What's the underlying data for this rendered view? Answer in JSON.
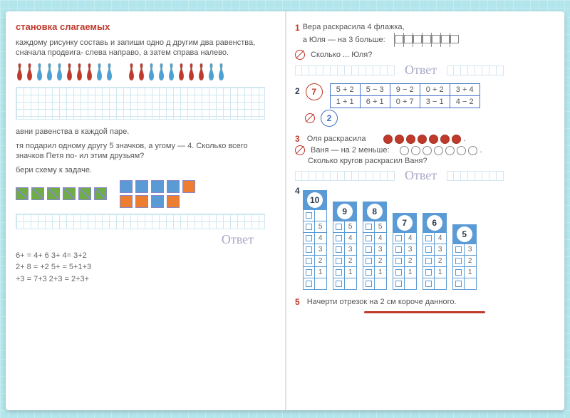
{
  "left": {
    "title": "становка слагаемых",
    "task1": "каждому рисунку составь и запиши одно д другим два равенства, сначала продвига- слева направо, а затем справа налево.",
    "pins_pattern": [
      "r",
      "r",
      "b",
      "b",
      "b",
      "r",
      "r",
      "r",
      "b",
      "b",
      "gap",
      "r",
      "r",
      "b",
      "b",
      "b",
      "r",
      "r",
      "r",
      "b",
      "b"
    ],
    "pin_colors": {
      "r": "#c0392b",
      "b": "#4aa3d4"
    },
    "task2": "авни равенства в каждой паре.",
    "task3a": "тя подарил одному другу 5 значков, а угому — 4. Сколько всего значков Петя по- ил этим друзьям?",
    "task3b": "бери схему к задаче.",
    "schema_boxes": {
      "green_diag_count": 6,
      "right_top": [
        "b",
        "b",
        "b",
        "b",
        "o"
      ],
      "right_bottom": [
        "o",
        "o",
        "b",
        "o"
      ]
    },
    "otvet": "Ответ",
    "equations": [
      "6+   = 4+ 6    3+ 4= 3+2",
      "2+ 8 =   +2    5+   = 5+1+3",
      "  +3 = 7+3     2+3 = 2+3+"
    ]
  },
  "right": {
    "t1": {
      "num": "1",
      "line1": "Вера раскрасила 4 флажка,",
      "line2": "а Юля — на 3 больше:",
      "line3": "Сколько ... Юля?",
      "flag_count": 7
    },
    "t2": {
      "num": "2",
      "circle7": "7",
      "circle2": "2",
      "row1": [
        "5 + 2",
        "5 − 3",
        "9 − 2",
        "0 + 2",
        "3 + 4"
      ],
      "row2": [
        "1 + 1",
        "6 + 1",
        "0 + 7",
        "3 − 1",
        "4 − 2"
      ]
    },
    "t3": {
      "num": "3",
      "line1": "Оля раскрасила",
      "line2": "Ваня — на 2 меньше:",
      "line3": "Сколько кругов раскрасил Ваня?",
      "filled": 7,
      "empty": 7
    },
    "t4": {
      "num": "4",
      "towers": [
        {
          "head": "10",
          "rows": [
            [
              "",
              ""
            ],
            [
              "",
              "5"
            ],
            [
              "",
              "4"
            ],
            [
              "",
              "3"
            ],
            [
              "",
              "2"
            ],
            [
              "",
              "1"
            ],
            [
              "",
              ""
            ]
          ]
        },
        {
          "head": "9",
          "rows": [
            [
              "",
              "5"
            ],
            [
              "",
              "4"
            ],
            [
              "",
              "3"
            ],
            [
              "",
              "2"
            ],
            [
              "",
              "1"
            ],
            [
              "",
              ""
            ]
          ]
        },
        {
          "head": "8",
          "rows": [
            [
              "",
              "5"
            ],
            [
              "",
              "4"
            ],
            [
              "",
              "3"
            ],
            [
              "",
              "2"
            ],
            [
              "",
              "1"
            ],
            [
              "",
              ""
            ]
          ]
        },
        {
          "head": "7",
          "rows": [
            [
              "",
              "4"
            ],
            [
              "",
              "3"
            ],
            [
              "",
              "2"
            ],
            [
              "",
              "1"
            ],
            [
              "",
              ""
            ]
          ]
        },
        {
          "head": "6",
          "rows": [
            [
              "",
              "4"
            ],
            [
              "",
              "3"
            ],
            [
              "",
              "2"
            ],
            [
              "",
              "1"
            ],
            [
              "",
              ""
            ]
          ]
        },
        {
          "head": "5",
          "rows": [
            [
              "",
              "3"
            ],
            [
              "",
              "2"
            ],
            [
              "",
              "1"
            ],
            [
              "",
              ""
            ]
          ]
        }
      ]
    },
    "t5": {
      "num": "5",
      "text": "Начерти отрезок на 2 см короче данного."
    },
    "otvet": "Ответ"
  },
  "colors": {
    "red": "#c0392b",
    "blue": "#5b9bd5",
    "orange": "#ed7d31",
    "green": "#70ad47",
    "bg_grid": "#cfe8f0"
  }
}
